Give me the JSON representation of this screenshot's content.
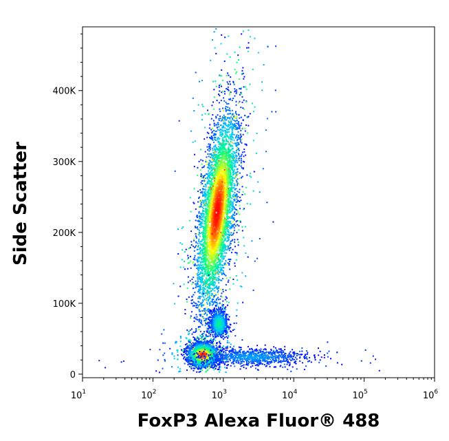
{
  "chart_data": {
    "type": "heatmap",
    "subtype": "flow-cytometry-density-dot-plot",
    "title": "",
    "xlabel": "FoxP3 Alexa Fluor® 488",
    "ylabel": "Side Scatter",
    "x_scale": "log",
    "xlim": [
      10,
      1000000
    ],
    "ylim": [
      -5000,
      490000
    ],
    "x_ticks": [
      {
        "value": 10,
        "base": "10",
        "exp": "1"
      },
      {
        "value": 100,
        "base": "10",
        "exp": "2"
      },
      {
        "value": 1000,
        "base": "10",
        "exp": "3"
      },
      {
        "value": 10000,
        "base": "10",
        "exp": "4"
      },
      {
        "value": 100000,
        "base": "10",
        "exp": "5"
      },
      {
        "value": 1000000,
        "base": "10",
        "exp": "6"
      }
    ],
    "y_ticks": [
      {
        "value": 0,
        "label": "0"
      },
      {
        "value": 100000,
        "label": "100K"
      },
      {
        "value": 200000,
        "label": "200K"
      },
      {
        "value": 300000,
        "label": "300K"
      },
      {
        "value": 400000,
        "label": "400K"
      }
    ],
    "color_scale": [
      "#0000ff",
      "#00c8ff",
      "#00ff80",
      "#ffff00",
      "#ff0000"
    ],
    "populations": [
      {
        "x_center": 800,
        "y_center": 230000,
        "x_spread_decades": 0.12,
        "y_spread": 70000,
        "slope_decades_per_100k": 0.12,
        "peak_density": 1.0
      },
      {
        "x_center": 500,
        "y_center": 28000,
        "x_spread_decades": 0.1,
        "y_spread": 8000,
        "slope_decades_per_100k": 0.0,
        "peak_density": 1.0
      },
      {
        "x_center": 850,
        "y_center": 72000,
        "x_spread_decades": 0.06,
        "y_spread": 9000,
        "slope_decades_per_100k": 0.0,
        "peak_density": 0.45
      },
      {
        "x_center": 2500,
        "y_center": 25000,
        "x_spread_decades": 0.4,
        "y_spread": 6000,
        "slope_decades_per_100k": 0.0,
        "peak_density": 0.2
      }
    ],
    "grid": false,
    "legend": "none"
  }
}
